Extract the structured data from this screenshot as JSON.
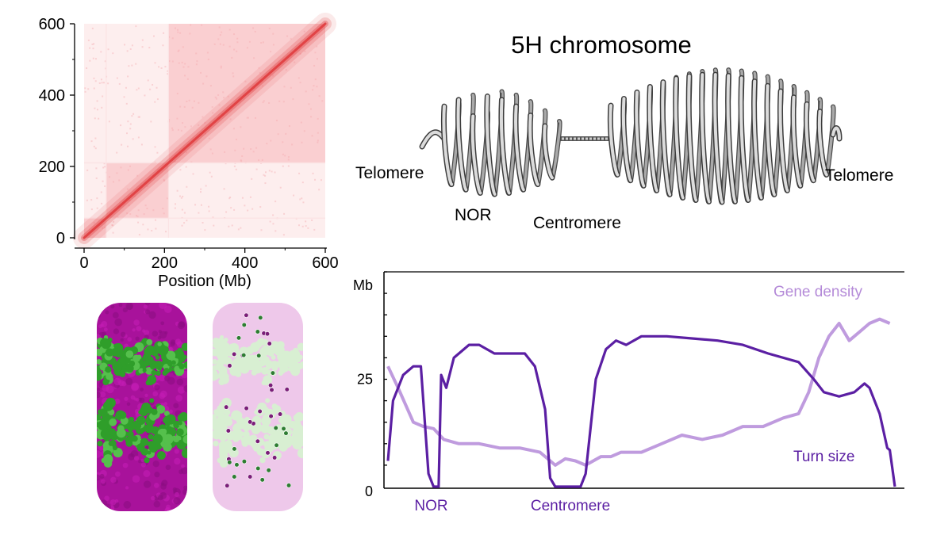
{
  "heatmap": {
    "x_ticks": [
      "0",
      "200",
      "400",
      "600"
    ],
    "y_ticks": [
      "0",
      "200",
      "400",
      "600"
    ],
    "xlabel": "Position (Mb)",
    "range": [
      0,
      600
    ],
    "domain_boundaries_mb": [
      55,
      210
    ]
  },
  "model3d": {
    "left_colors": {
      "body": "#a8129b",
      "band": "#2f9e2a"
    },
    "right_colors": {
      "body": "#eec8ea",
      "band": "#d8efd2",
      "beads_purple": "#7a1e78",
      "beads_green": "#2e7d32"
    }
  },
  "chromosome": {
    "title": "5H chromosome",
    "labels": {
      "telomere_left": "Telomere",
      "nor": "NOR",
      "centromere": "Centromere",
      "telomere_right": "Telomere"
    }
  },
  "chart_data": {
    "type": "line",
    "ylabel": "Mb",
    "y_ticks": [
      "0",
      "25"
    ],
    "ylim": [
      0,
      50
    ],
    "xlim": [
      0,
      100
    ],
    "x_markers": [
      {
        "label": "NOR",
        "x": 9
      },
      {
        "label": "Centromere",
        "x": 36
      }
    ],
    "series": [
      {
        "name": "Turn size",
        "color": "#5b1fa3",
        "points": [
          [
            0,
            6
          ],
          [
            1,
            20
          ],
          [
            3,
            26
          ],
          [
            5,
            28
          ],
          [
            6.5,
            28
          ],
          [
            8,
            3
          ],
          [
            9,
            0
          ],
          [
            10,
            0
          ],
          [
            10.5,
            26
          ],
          [
            11.5,
            23
          ],
          [
            13,
            30
          ],
          [
            16,
            33
          ],
          [
            18,
            33
          ],
          [
            21,
            31
          ],
          [
            24,
            31
          ],
          [
            27,
            31
          ],
          [
            29,
            28
          ],
          [
            31,
            18
          ],
          [
            32,
            2
          ],
          [
            33,
            0
          ],
          [
            38,
            0
          ],
          [
            39,
            3
          ],
          [
            41,
            25
          ],
          [
            43,
            32
          ],
          [
            45,
            34
          ],
          [
            47,
            33
          ],
          [
            50,
            35
          ],
          [
            55,
            35
          ],
          [
            60,
            34.5
          ],
          [
            65,
            34
          ],
          [
            70,
            33
          ],
          [
            75,
            31
          ],
          [
            81,
            29
          ],
          [
            84,
            25
          ],
          [
            86,
            22
          ],
          [
            89,
            21
          ],
          [
            92,
            22
          ],
          [
            94,
            24
          ],
          [
            95,
            23
          ],
          [
            97,
            17
          ],
          [
            98.5,
            9
          ],
          [
            99,
            8.5
          ],
          [
            100,
            0
          ]
        ]
      },
      {
        "name": "Gene density",
        "color": "#b48ad8",
        "points": [
          [
            0,
            28
          ],
          [
            2,
            23
          ],
          [
            5,
            15
          ],
          [
            7,
            14
          ],
          [
            9,
            13.5
          ],
          [
            11,
            11
          ],
          [
            14,
            10
          ],
          [
            18,
            10
          ],
          [
            22,
            9
          ],
          [
            26,
            9
          ],
          [
            30,
            8
          ],
          [
            33,
            5
          ],
          [
            35,
            6.5
          ],
          [
            37,
            6
          ],
          [
            39,
            5
          ],
          [
            42,
            7
          ],
          [
            44,
            7
          ],
          [
            46,
            8
          ],
          [
            50,
            8
          ],
          [
            54,
            10
          ],
          [
            58,
            12
          ],
          [
            62,
            11
          ],
          [
            66,
            12
          ],
          [
            70,
            14
          ],
          [
            74,
            14
          ],
          [
            78,
            16
          ],
          [
            81,
            17
          ],
          [
            83,
            22
          ],
          [
            85,
            30
          ],
          [
            87,
            35
          ],
          [
            89,
            38
          ],
          [
            91,
            34
          ],
          [
            93,
            36
          ],
          [
            95,
            38
          ],
          [
            97,
            39
          ],
          [
            99,
            38
          ]
        ]
      }
    ]
  }
}
